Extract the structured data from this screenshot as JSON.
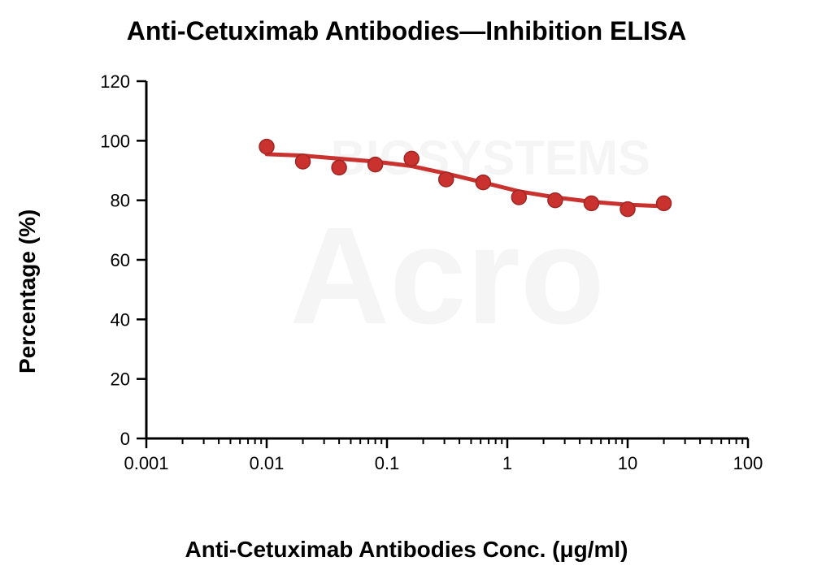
{
  "chart": {
    "type": "scatter-line-logx",
    "title": "Anti-Cetuximab Antibodies—Inhibition ELISA",
    "title_fontsize": 32,
    "title_fontweight": 900,
    "xlabel": "Anti-Cetuximab Antibodies Conc. (μg/ml)",
    "ylabel": "Percentage (%)",
    "axis_label_fontsize": 28,
    "axis_label_fontweight": 900,
    "tick_fontsize": 22,
    "background_color": "#ffffff",
    "axis_color": "#000000",
    "axis_line_width": 3,
    "tick_line_width": 2.5,
    "tick_length_major": 12,
    "tick_length_minor": 7,
    "ylim": [
      0,
      120
    ],
    "ytick_step": 20,
    "yticks": [
      0,
      20,
      40,
      60,
      80,
      100,
      120
    ],
    "xscale": "log10",
    "xlim_log10": [
      -3,
      2
    ],
    "xticks_major": [
      0.001,
      0.01,
      0.1,
      1,
      10,
      100
    ],
    "xtick_labels": [
      "0.001",
      "0.01",
      "0.1",
      "1",
      "10",
      "100"
    ],
    "xticks_minor_per_decade": [
      2,
      3,
      4,
      5,
      6,
      7,
      8,
      9
    ],
    "series": {
      "color": "#c9322f",
      "line_width": 5,
      "marker_shape": "circle",
      "marker_radius": 9,
      "marker_fill": "#c9322f",
      "marker_stroke": "#a02623",
      "marker_stroke_width": 1.5,
      "points": [
        {
          "x": 0.01,
          "y": 98
        },
        {
          "x": 0.02,
          "y": 93
        },
        {
          "x": 0.04,
          "y": 91
        },
        {
          "x": 0.08,
          "y": 92
        },
        {
          "x": 0.16,
          "y": 94
        },
        {
          "x": 0.31,
          "y": 87
        },
        {
          "x": 0.63,
          "y": 86
        },
        {
          "x": 1.25,
          "y": 81
        },
        {
          "x": 2.5,
          "y": 80
        },
        {
          "x": 5.0,
          "y": 79
        },
        {
          "x": 10.0,
          "y": 77
        },
        {
          "x": 20.0,
          "y": 79
        }
      ],
      "fit_curve": [
        {
          "x": 0.01,
          "y": 95.5
        },
        {
          "x": 0.02,
          "y": 95.0
        },
        {
          "x": 0.04,
          "y": 94.0
        },
        {
          "x": 0.08,
          "y": 93.0
        },
        {
          "x": 0.16,
          "y": 91.5
        },
        {
          "x": 0.31,
          "y": 89.0
        },
        {
          "x": 0.63,
          "y": 86.0
        },
        {
          "x": 1.25,
          "y": 83.0
        },
        {
          "x": 2.5,
          "y": 81.0
        },
        {
          "x": 5.0,
          "y": 79.5
        },
        {
          "x": 10.0,
          "y": 78.5
        },
        {
          "x": 20.0,
          "y": 78.0
        }
      ]
    },
    "watermark": {
      "main": "Acro",
      "sub": "BIOSYSTEMS",
      "color": "rgba(0,0,0,0.04)"
    }
  }
}
